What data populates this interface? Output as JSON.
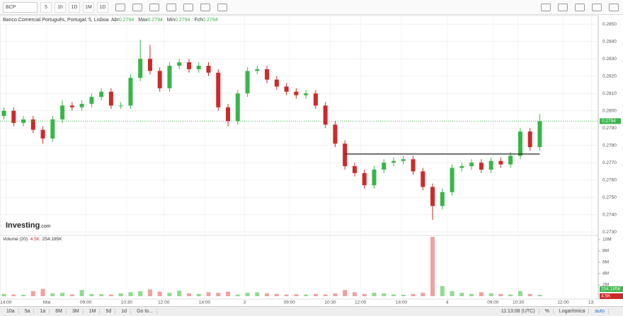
{
  "toolbar": {
    "symbol": "BCP",
    "intervals": [
      "5",
      "1h",
      "1D",
      "1M",
      "1D"
    ]
  },
  "chart_data": [
    {
      "type": "candlestick",
      "title": "Banco Comercial Português, Portugal, 5, Lisboa",
      "legend_values": [
        {
          "name": "Abr",
          "value": 0.2794
        },
        {
          "name": "Max",
          "value": 0.2794
        },
        {
          "name": "Min",
          "value": 0.2794
        },
        {
          "name": "Fch",
          "value": 0.2794
        }
      ],
      "up_color": "#39b54a",
      "down_color": "#cc2a2a",
      "open": [
        0.2797,
        0.28,
        0.2793,
        0.2795,
        0.2789,
        0.2784,
        0.2795,
        0.2803,
        0.2802,
        0.2804,
        0.2808,
        0.2811,
        0.2803,
        0.2803,
        0.2819,
        0.283,
        0.2823,
        0.2813,
        0.2826,
        0.2828,
        0.2824,
        0.2826,
        0.2822,
        0.2802,
        0.2794,
        0.281,
        0.2823,
        0.2824,
        0.2818,
        0.2814,
        0.2811,
        0.2809,
        0.281,
        0.2803,
        0.2792,
        0.2781,
        0.2768,
        0.2764,
        0.2757,
        0.2766,
        0.277,
        0.2771,
        0.2772,
        0.2765,
        0.2756,
        0.2745,
        0.2753,
        0.2767,
        0.2768,
        0.277,
        0.2766,
        0.2771,
        0.2769,
        0.2774,
        0.2788,
        0.2779
      ],
      "high": [
        0.2802,
        0.2802,
        0.2797,
        0.2797,
        0.2791,
        0.2797,
        0.2806,
        0.2805,
        0.2806,
        0.281,
        0.2813,
        0.2813,
        0.2805,
        0.2821,
        0.2841,
        0.2838,
        0.2825,
        0.2828,
        0.283,
        0.283,
        0.2828,
        0.2828,
        0.2824,
        0.2804,
        0.2812,
        0.2825,
        0.2826,
        0.2826,
        0.282,
        0.2816,
        0.2813,
        0.2812,
        0.2812,
        0.2805,
        0.2794,
        0.2783,
        0.277,
        0.2766,
        0.2768,
        0.2772,
        0.2773,
        0.2774,
        0.2774,
        0.2767,
        0.2758,
        0.2755,
        0.2769,
        0.277,
        0.2772,
        0.2772,
        0.2773,
        0.2773,
        0.2776,
        0.279,
        0.279,
        0.2798
      ],
      "low": [
        0.2795,
        0.2791,
        0.2791,
        0.2787,
        0.2781,
        0.2782,
        0.2793,
        0.28,
        0.28,
        0.2802,
        0.2806,
        0.2801,
        0.2801,
        0.2801,
        0.2817,
        0.2821,
        0.2811,
        0.2811,
        0.2824,
        0.2822,
        0.2822,
        0.282,
        0.28,
        0.2791,
        0.2792,
        0.2808,
        0.2821,
        0.2816,
        0.2812,
        0.2809,
        0.2807,
        0.2807,
        0.2801,
        0.279,
        0.2779,
        0.2766,
        0.2762,
        0.2755,
        0.2755,
        0.2764,
        0.2768,
        0.2769,
        0.2763,
        0.2754,
        0.2737,
        0.2743,
        0.2751,
        0.2765,
        0.2766,
        0.2764,
        0.2764,
        0.2767,
        0.2767,
        0.2772,
        0.2777,
        0.2777
      ],
      "close": [
        0.28,
        0.2793,
        0.2795,
        0.2789,
        0.2784,
        0.2795,
        0.2803,
        0.2802,
        0.2804,
        0.2808,
        0.2811,
        0.2803,
        0.2803,
        0.2819,
        0.283,
        0.2823,
        0.2813,
        0.2826,
        0.2828,
        0.2824,
        0.2826,
        0.2822,
        0.2802,
        0.2794,
        0.281,
        0.2823,
        0.2824,
        0.2818,
        0.2814,
        0.2811,
        0.2809,
        0.281,
        0.2803,
        0.2792,
        0.2781,
        0.2768,
        0.2764,
        0.2757,
        0.2766,
        0.277,
        0.2771,
        0.2772,
        0.2765,
        0.2756,
        0.2745,
        0.2753,
        0.2767,
        0.2768,
        0.277,
        0.2766,
        0.2771,
        0.2769,
        0.2774,
        0.2788,
        0.2779,
        0.2794
      ],
      "last_price": 0.2794,
      "trend_line": {
        "x": [
          35,
          55
        ],
        "y": [
          0.2775,
          0.2775
        ]
      },
      "xlim": [
        -0.4,
        61
      ],
      "xticks": [
        {
          "value": 0.2,
          "label": "14:00"
        },
        {
          "value": 4.4,
          "label": "Mai"
        },
        {
          "value": 8.4,
          "label": "09:00"
        },
        {
          "value": 12.6,
          "label": "10:30"
        },
        {
          "value": 16.4,
          "label": "12:00"
        },
        {
          "value": 20.6,
          "label": "14:00"
        },
        {
          "value": 24.7,
          "label": "3"
        },
        {
          "value": 29.3,
          "label": "09:00"
        },
        {
          "value": 33.5,
          "label": "10:30"
        },
        {
          "value": 36.6,
          "label": "12:00"
        },
        {
          "value": 40.8,
          "label": "14:00"
        },
        {
          "value": 45.5,
          "label": "4"
        },
        {
          "value": 50.2,
          "label": "09:00"
        },
        {
          "value": 52.8,
          "label": "10:30"
        },
        {
          "value": 57.4,
          "label": "12:00"
        },
        {
          "value": 60.3,
          "label": "13:"
        }
      ],
      "ylim": [
        0.2728,
        0.2855
      ],
      "yticks": [
        {
          "value": 0.273,
          "label": "0.2730"
        },
        {
          "value": 0.274,
          "label": "0.2740"
        },
        {
          "value": 0.275,
          "label": "0.2750"
        },
        {
          "value": 0.276,
          "label": "0.2760"
        },
        {
          "value": 0.277,
          "label": "0.2770"
        },
        {
          "value": 0.278,
          "label": "0.2780"
        },
        {
          "value": 0.279,
          "label": "0.2790"
        },
        {
          "value": 0.28,
          "label": "0.2800"
        },
        {
          "value": 0.281,
          "label": "0.2810"
        },
        {
          "value": 0.282,
          "label": "0.2820"
        },
        {
          "value": 0.283,
          "label": "0.2830"
        },
        {
          "value": 0.284,
          "label": "0.2840"
        },
        {
          "value": 0.285,
          "label": "0.2850"
        }
      ],
      "grid": true,
      "brand": "Investing",
      "brand_suffix": ".com"
    },
    {
      "type": "bar",
      "title": "Volume (20)",
      "indicators": [
        {
          "value": 4500,
          "label": "4.5K",
          "color": "#cc2a2a"
        },
        {
          "value": 254185,
          "label": "254.185K",
          "color": "#39b54a"
        }
      ],
      "up_color": "#8fdc8f",
      "down_color": "#f0a0a0",
      "values": [
        400000,
        300000,
        250000,
        900000,
        1300000,
        500000,
        600000,
        300000,
        1100000,
        400000,
        350000,
        300000,
        500000,
        700000,
        900000,
        1200000,
        800000,
        600000,
        1000000,
        500000,
        400000,
        700000,
        600000,
        800000,
        300000,
        600000,
        700000,
        500000,
        400000,
        300000,
        350000,
        300000,
        400000,
        300000,
        500000,
        1100000,
        700000,
        400000,
        600000,
        500000,
        300000,
        250000,
        400000,
        600000,
        10500000,
        1800000,
        900000,
        600000,
        400000,
        700000,
        500000,
        400000,
        300000,
        900000,
        400000,
        254185
      ],
      "ylim": [
        0,
        11000000
      ],
      "yticks": [
        {
          "value": 2000000,
          "label": "2M"
        },
        {
          "value": 4000000,
          "label": "4M"
        },
        {
          "value": 6000000,
          "label": "6M"
        },
        {
          "value": 8000000,
          "label": "8M"
        },
        {
          "value": 10000000,
          "label": "10M"
        }
      ]
    }
  ],
  "footer": {
    "ranges": [
      "10a",
      "5a",
      "1a",
      "6M",
      "3M",
      "1M",
      "5d",
      "1d"
    ],
    "goto": "Go to...",
    "clock": "11:13:08 (UTC)",
    "options": [
      "%",
      "Logarítmica",
      "auto"
    ]
  }
}
